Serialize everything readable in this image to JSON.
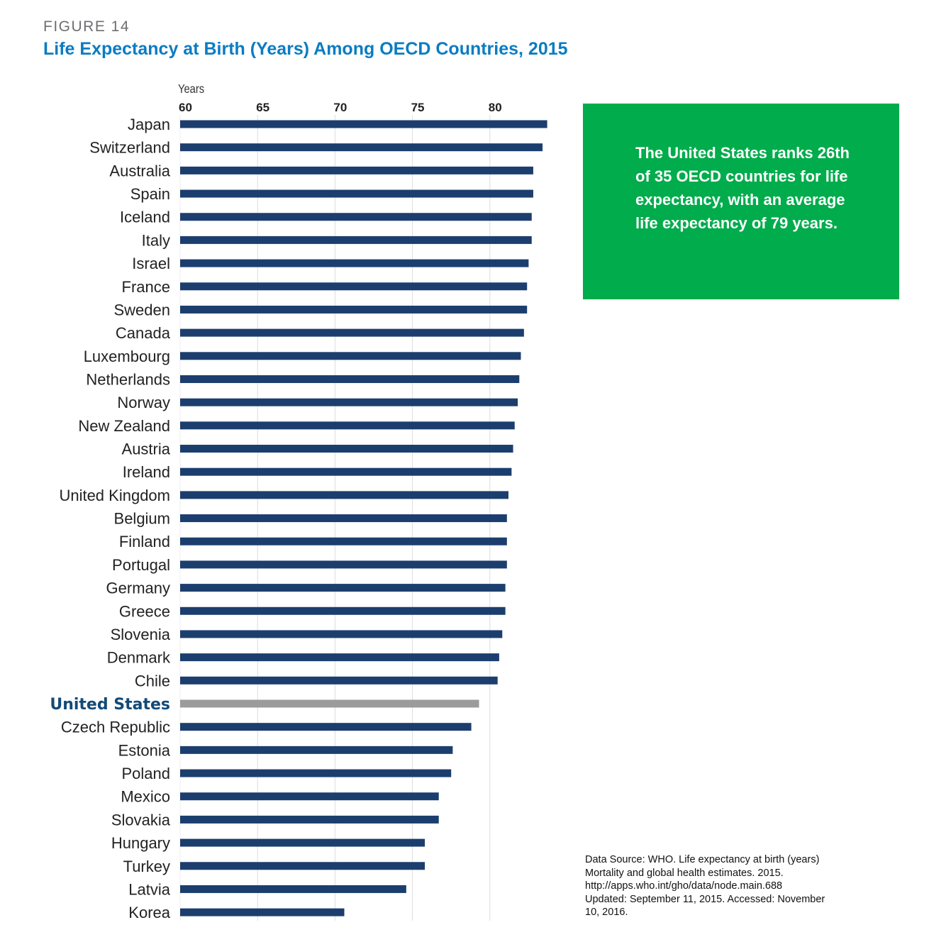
{
  "figure_label": "FIGURE 14",
  "callout": "The United States ranks 26th of 35 OECD countries for life expectancy, with an average life expectancy of 79 years.",
  "source": "Data Source: WHO. Life expectancy at birth (years) Mortality and global health estimates. 2015. http://apps.who.int/gho/data/node.main.688 Updated: September 11, 2015. Accessed: November 10, 2016.",
  "colors": {
    "bar": "#1c3e6e",
    "highlight_bar": "#9b9b9b",
    "highlight_label": "#124a78",
    "title": "#0a7cc1",
    "callout_bg": "#00ac4b"
  },
  "chart_data": {
    "type": "bar",
    "orientation": "horizontal",
    "title": "Life Expectancy at Birth (Years) Among OECD Countries, 2015",
    "xlabel": "Years",
    "xlim": [
      60,
      83.7
    ],
    "xticks": [
      60,
      65,
      70,
      75,
      80
    ],
    "grid": true,
    "highlight": "United States",
    "categories": [
      "Japan",
      "Switzerland",
      "Australia",
      "Spain",
      "Iceland",
      "Italy",
      "Israel",
      "France",
      "Sweden",
      "Canada",
      "Luxembourg",
      "Netherlands",
      "Norway",
      "New Zealand",
      "Austria",
      "Ireland",
      "United Kingdom",
      "Belgium",
      "Finland",
      "Portugal",
      "Germany",
      "Greece",
      "Slovenia",
      "Denmark",
      "Chile",
      "United States",
      "Czech Republic",
      "Estonia",
      "Poland",
      "Mexico",
      "Slovakia",
      "Hungary",
      "Turkey",
      "Latvia",
      "Korea"
    ],
    "values": [
      83.7,
      83.4,
      82.8,
      82.8,
      82.7,
      82.7,
      82.5,
      82.4,
      82.4,
      82.2,
      82.0,
      81.9,
      81.8,
      81.6,
      81.5,
      81.4,
      81.2,
      81.1,
      81.1,
      81.1,
      81.0,
      81.0,
      80.8,
      80.6,
      80.5,
      79.3,
      78.8,
      77.6,
      77.5,
      76.7,
      76.7,
      75.8,
      75.8,
      74.6,
      70.6
    ]
  }
}
